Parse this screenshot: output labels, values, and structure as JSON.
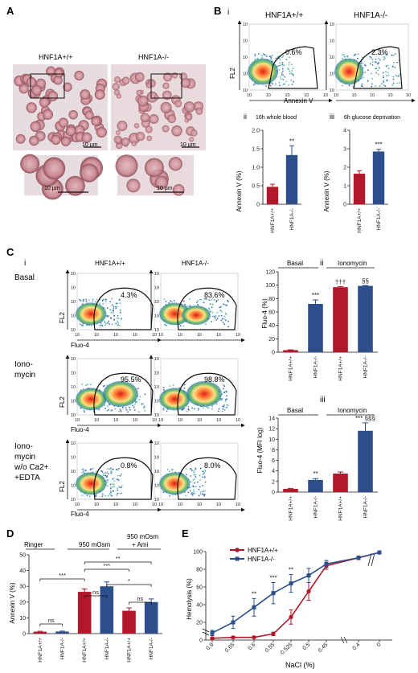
{
  "panels": {
    "A": {
      "letter": "A",
      "wt_label": "HNF1A+/+",
      "ko_label": "HNF1A-/-",
      "scale_top_left": "10 µm",
      "scale_top_right": "10 µm",
      "scale_bottom_left": "10 µm",
      "scale_bottom_right": "10 µm"
    },
    "B": {
      "letter": "B",
      "sub_i": "i",
      "sub_ii": "ii",
      "sub_iii": "iii",
      "wt_label": "HNF1A+/+",
      "ko_label": "HNF1A-/-",
      "flow_xlabel": "Annexin V",
      "flow_ylabel": "FL2",
      "wt_percent": "0.6%",
      "ko_percent": "2.3%",
      "bar_ii_title": "16h whole blood",
      "bar_iii_title": "6h glucose deprivation",
      "ylabel": "Annexin V (%)"
    },
    "C": {
      "letter": "C",
      "sub_i": "i",
      "sub_ii": "ii",
      "sub_iii": "iii",
      "wt_label": "HNF1A+/+",
      "ko_label": "HNF1A-/-",
      "row_basal": "Basal",
      "row_iono_1": "Iono-",
      "row_iono_2": "mycin",
      "row_iono_ca_1": "Iono-",
      "row_iono_ca_2": "mycin",
      "row_iono_ca_3": "w/o Ca2+",
      "row_iono_ca_4": "+EDTA",
      "flow_xlabel": "Fluo-4",
      "flow_ylabel": "FL2",
      "pct_basal_wt": "4.3%",
      "pct_basal_ko": "83.6%",
      "pct_iono_wt": "95.5%",
      "pct_iono_ko": "98.8%",
      "pct_edta_wt": "0.8%",
      "pct_edta_ko": "8.0%",
      "group_basal": "Basal",
      "group_iono": "Ionomycin",
      "ylabel_ii": "Fluo-4 (%)",
      "ylabel_iii": "Fluo-4 (MFI log)"
    },
    "D": {
      "letter": "D",
      "group_ringer": "Ringer",
      "group_950": "950 mOsm",
      "group_950ami_1": "950 mOsm",
      "group_950ami_2": "+ Ami",
      "ylabel": "Annexin V (%)"
    },
    "E": {
      "letter": "E",
      "legend_wt": "HNF1A+/+",
      "legend_ko": "HNF1A-/-",
      "xlabel": "NaCl (%)",
      "ylabel": "Hemolysis (%)"
    }
  },
  "colors": {
    "wt": "#b2182b",
    "ko": "#2c4f8c"
  },
  "chart_data": [
    {
      "id": "B-ii",
      "type": "bar",
      "title": "16h whole blood",
      "ylabel": "Annexin V (%)",
      "categories": [
        "HNF1A+/+",
        "HNF1A-/-"
      ],
      "values": [
        0.47,
        1.33
      ],
      "errors": [
        0.07,
        0.25
      ],
      "ylim": [
        0,
        2.0
      ],
      "yticks": [
        0,
        0.5,
        1.0,
        1.5,
        2.0
      ],
      "ytick_labels": [
        "0",
        "0.5",
        "1.0",
        "1.5",
        "2.0"
      ],
      "significance": [
        "",
        "**"
      ]
    },
    {
      "id": "B-iii",
      "type": "bar",
      "title": "6h glucose deprivation",
      "ylabel": "Annexin V (%)",
      "categories": [
        "HNF1A+/+",
        "HNF1A-/-"
      ],
      "values": [
        1.65,
        2.85
      ],
      "errors": [
        0.15,
        0.12
      ],
      "ylim": [
        0,
        4
      ],
      "yticks": [
        0,
        1,
        2,
        3,
        4
      ],
      "ytick_labels": [
        "0",
        "1",
        "2",
        "3",
        "4"
      ],
      "significance": [
        "",
        "***"
      ]
    },
    {
      "id": "C-ii",
      "type": "bar",
      "ylabel": "Fluo-4 (%)",
      "categories": [
        "HNF1A+/+",
        "HNF1A-/-",
        "HNF1A+/+",
        "HNF1A-/-"
      ],
      "values": [
        3,
        72,
        97,
        99
      ],
      "errors": [
        0.5,
        6,
        1,
        0.5
      ],
      "ylim": [
        0,
        120
      ],
      "yticks": [
        0,
        20,
        40,
        60,
        80,
        100,
        120
      ],
      "ytick_labels": [
        "0",
        "20",
        "40",
        "60",
        "80",
        "100",
        "120"
      ],
      "significance": [
        "",
        "***",
        "†††",
        "§§"
      ]
    },
    {
      "id": "C-iii",
      "type": "bar",
      "ylabel": "Fluo-4 (MFI log)",
      "categories": [
        "HNF1A+/+",
        "HNF1A-/-",
        "HNF1A+/+",
        "HNF1A-/-"
      ],
      "values": [
        0.6,
        2.3,
        3.5,
        11.6
      ],
      "errors": [
        0.1,
        0.25,
        0.3,
        1.5
      ],
      "ylim": [
        0,
        14
      ],
      "yticks": [
        0,
        2,
        4,
        6,
        8,
        10,
        12,
        14
      ],
      "ytick_labels": [
        "0",
        "2",
        "4",
        "6",
        "8",
        "10",
        "12",
        "14"
      ],
      "significance": [
        "",
        "**",
        "",
        "*** §§§"
      ]
    },
    {
      "id": "D",
      "type": "bar",
      "ylabel": "Annexin V (%)",
      "categories": [
        "HNF1A+/+",
        "HNF1A-/-",
        "HNF1A+/+",
        "HNF1A-/-",
        "HNF1A+/+",
        "HNF1A-/-"
      ],
      "values": [
        1.2,
        1.3,
        26.5,
        30,
        14.5,
        20
      ],
      "errors": [
        0.3,
        0.3,
        1.8,
        2.8,
        1.8,
        2.0
      ],
      "ylim": [
        0,
        50
      ],
      "yticks": [
        0,
        10,
        20,
        30,
        40,
        50
      ],
      "ytick_labels": [
        "0",
        "10",
        "20",
        "30",
        "40",
        "50"
      ],
      "brackets": [
        {
          "from": 0,
          "to": 1,
          "label": "ns"
        },
        {
          "from": 0,
          "to": 2,
          "label": "***"
        },
        {
          "from": 2,
          "to": 4,
          "label": "***"
        },
        {
          "from": 2,
          "to": 5,
          "label": "**"
        },
        {
          "from": 3,
          "to": 5,
          "label": "*"
        },
        {
          "from": 2,
          "to": 3,
          "label": "ns"
        },
        {
          "from": 4,
          "to": 5,
          "label": "ns"
        }
      ]
    },
    {
      "id": "E",
      "type": "line",
      "xlabel": "NaCl (%)",
      "ylabel": "Hemolysis (%)",
      "x_labels": [
        "0.9",
        "0.65",
        "0.6",
        "0.55",
        "0.525",
        "0.5",
        "0.45",
        "0.4",
        "0"
      ],
      "ylim": [
        0,
        100
      ],
      "yticks": [
        0,
        20,
        40,
        60,
        80,
        100
      ],
      "ytick_labels": [
        "0",
        "20",
        "40",
        "60",
        "80",
        "100"
      ],
      "series": [
        {
          "name": "HNF1A+/+",
          "values": [
            2,
            3,
            3,
            7,
            26,
            55,
            84,
            93,
            99
          ],
          "errors": [
            1,
            1,
            1,
            2,
            8,
            10,
            4,
            2,
            1
          ]
        },
        {
          "name": "HNF1A-/-",
          "values": [
            8,
            20,
            37,
            53,
            64,
            73,
            86,
            93,
            99
          ],
          "errors": [
            3,
            7,
            10,
            12,
            10,
            8,
            4,
            2,
            1
          ]
        }
      ],
      "significance": [
        "",
        "",
        "**",
        "***",
        "**",
        "",
        "",
        "",
        ""
      ]
    }
  ]
}
